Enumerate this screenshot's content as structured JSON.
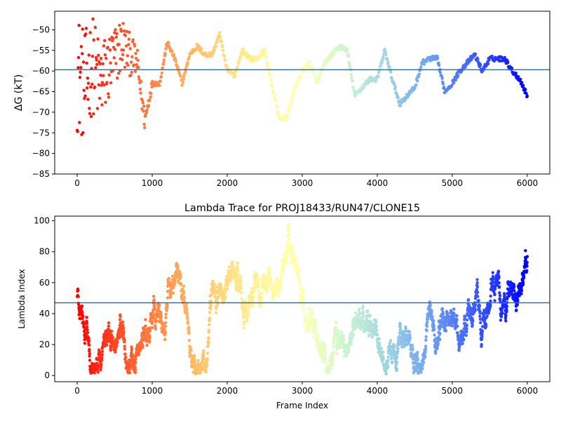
{
  "chart_data": [
    {
      "type": "scatter",
      "title": "",
      "xlabel": "",
      "ylabel": "ΔG (kT)",
      "xlim": [
        -300,
        6300
      ],
      "ylim": [
        -85,
        -45.5
      ],
      "xticks": [
        0,
        1000,
        2000,
        3000,
        4000,
        5000,
        6000
      ],
      "yticks": [
        -85,
        -80,
        -75,
        -70,
        -65,
        -60,
        -55,
        -50
      ],
      "xtick_labels": [
        "0",
        "1000",
        "2000",
        "3000",
        "4000",
        "5000",
        "6000"
      ],
      "ytick_labels": [
        "−85",
        "−80",
        "−75",
        "−70",
        "−65",
        "−60",
        "−55",
        "−50"
      ],
      "reference_line": -59.7,
      "reference_line_color": "#1f77b4",
      "colormap": "rainbow (red at frame 0 to violet at frame 6000)",
      "trace": [
        [
          0,
          -60
        ],
        [
          100,
          -64
        ],
        [
          200,
          -58
        ],
        [
          300,
          -63
        ],
        [
          400,
          -60
        ],
        [
          500,
          -57
        ],
        [
          600,
          -53
        ],
        [
          700,
          -56
        ],
        [
          800,
          -58
        ],
        [
          900,
          -72
        ],
        [
          1000,
          -63
        ],
        [
          1100,
          -63
        ],
        [
          1200,
          -53
        ],
        [
          1300,
          -57
        ],
        [
          1400,
          -63
        ],
        [
          1500,
          -56
        ],
        [
          1600,
          -54
        ],
        [
          1700,
          -56
        ],
        [
          1800,
          -56
        ],
        [
          1900,
          -51
        ],
        [
          2000,
          -60
        ],
        [
          2100,
          -61
        ],
        [
          2200,
          -55
        ],
        [
          2300,
          -57
        ],
        [
          2400,
          -57
        ],
        [
          2500,
          -55
        ],
        [
          2600,
          -64
        ],
        [
          2700,
          -72
        ],
        [
          2800,
          -71
        ],
        [
          2900,
          -64
        ],
        [
          3000,
          -60
        ],
        [
          3100,
          -58
        ],
        [
          3200,
          -63
        ],
        [
          3300,
          -58
        ],
        [
          3400,
          -56
        ],
        [
          3500,
          -54
        ],
        [
          3600,
          -55
        ],
        [
          3700,
          -66
        ],
        [
          3800,
          -64
        ],
        [
          3900,
          -62
        ],
        [
          4000,
          -62
        ],
        [
          4100,
          -55
        ],
        [
          4200,
          -62
        ],
        [
          4300,
          -68
        ],
        [
          4400,
          -66
        ],
        [
          4500,
          -64
        ],
        [
          4600,
          -58
        ],
        [
          4700,
          -57
        ],
        [
          4800,
          -57
        ],
        [
          4900,
          -65
        ],
        [
          5000,
          -63
        ],
        [
          5100,
          -60
        ],
        [
          5200,
          -58
        ],
        [
          5300,
          -56
        ],
        [
          5400,
          -60
        ],
        [
          5500,
          -57
        ],
        [
          5600,
          -57
        ],
        [
          5700,
          -57
        ],
        [
          5800,
          -60
        ],
        [
          5900,
          -62
        ],
        [
          6000,
          -66
        ]
      ]
    },
    {
      "type": "scatter",
      "title": "Lambda Trace for PROJ18433/RUN47/CLONE15",
      "xlabel": "Frame Index",
      "ylabel": "Lambda Index",
      "xlim": [
        -300,
        6300
      ],
      "ylim": [
        -4,
        103
      ],
      "xticks": [
        0,
        1000,
        2000,
        3000,
        4000,
        5000,
        6000
      ],
      "yticks": [
        0,
        20,
        40,
        60,
        80,
        100
      ],
      "xtick_labels": [
        "0",
        "1000",
        "2000",
        "3000",
        "4000",
        "5000",
        "6000"
      ],
      "ytick_labels": [
        "0",
        "20",
        "40",
        "60",
        "80",
        "100"
      ],
      "reference_line": 47,
      "reference_line_color": "#1f77b4",
      "colormap": "rainbow (red at frame 0 to violet at frame 6000)",
      "lambda_range": [
        0,
        99
      ],
      "frame_range": [
        0,
        6000
      ]
    }
  ]
}
